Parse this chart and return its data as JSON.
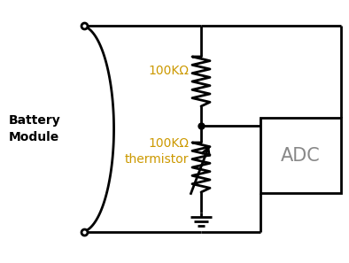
{
  "bg_color": "#ffffff",
  "line_color": "#000000",
  "label_color": "#cc9900",
  "adc_text_color": "#888888",
  "battery_label": "Battery\nModule",
  "resistor_label": "100KΩ",
  "thermistor_label": "100KΩ\nthermistor",
  "adc_label": "ADC",
  "fig_width": 3.94,
  "fig_height": 2.97,
  "dpi": 100
}
